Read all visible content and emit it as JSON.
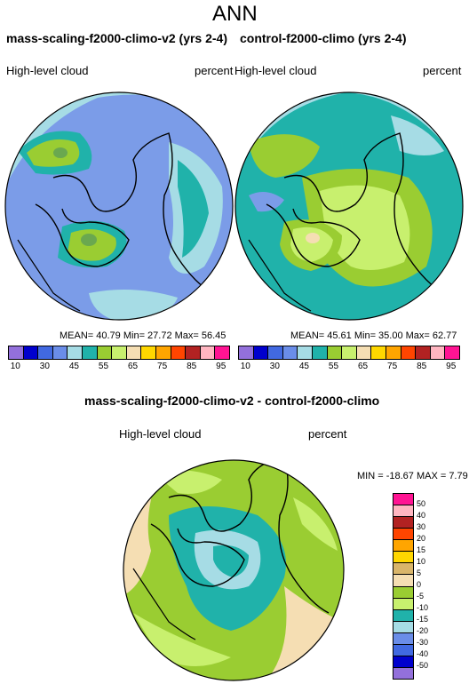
{
  "figure": {
    "season": "ANN",
    "left_title": "mass-scaling-f2000-climo-v2 (yrs 2-4)",
    "right_title": "control-f2000-climo (yrs 2-4)",
    "diff_title": "mass-scaling-f2000-climo-v2 - control-f2000-climo"
  },
  "panels": {
    "left": {
      "variable": "High-level cloud",
      "units": "percent",
      "stats": "MEAN= 40.79  Min= 27.72  Max= 56.45"
    },
    "right": {
      "variable": "High-level cloud",
      "units": "percent",
      "stats": "MEAN= 45.61  Min= 35.00  Max= 62.77"
    },
    "diff": {
      "variable": "High-level cloud",
      "units": "percent",
      "stats": "MIN = -18.67  MAX =   7.79"
    }
  },
  "colors": {
    "abs_bar": [
      "#9370db",
      "#0000cd",
      "#4169e1",
      "#6a8de8",
      "#a6dce5",
      "#20b2aa",
      "#9acd32",
      "#c8f06e",
      "#f5deb3",
      "#ffd700",
      "#ffa500",
      "#ff4500",
      "#b22222",
      "#ffb6c1",
      "#ff1493"
    ],
    "diff_bar": [
      "#ff1493",
      "#ffb6c1",
      "#b22222",
      "#ff4500",
      "#ffa500",
      "#ffd700",
      "#d9b56a",
      "#f5deb3",
      "#9acd32",
      "#c8f06e",
      "#20b2aa",
      "#a6dce5",
      "#6a8de8",
      "#4169e1",
      "#0000cd",
      "#9370db"
    ],
    "map_left_base": "#7b9ce8",
    "map_right_base": "#20b2aa",
    "map_diff_base": "#9acd32"
  },
  "abs_ticks": [
    "10",
    "30",
    "45",
    "55",
    "65",
    "75",
    "85",
    "95"
  ],
  "diff_ticks": [
    "50",
    "40",
    "30",
    "20",
    "15",
    "10",
    "5",
    "0",
    "-5",
    "-10",
    "-15",
    "-20",
    "-30",
    "-40",
    "-50"
  ]
}
